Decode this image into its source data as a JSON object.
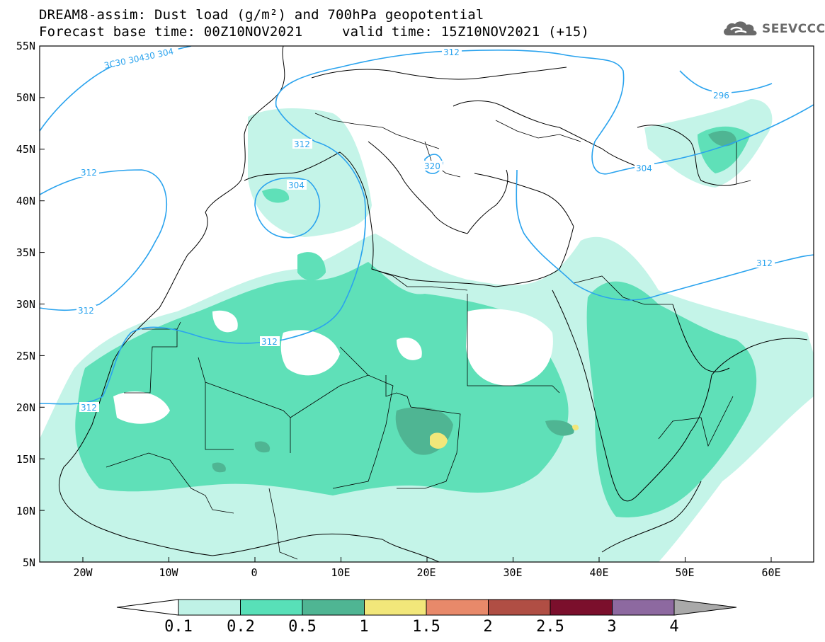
{
  "title": {
    "line1": "DREAM8-assim: Dust load (g/m²) and 700hPa geopotential",
    "line2": "Forecast base time: 00Z10NOV2021",
    "valid_time": "valid time: 15Z10NOV2021 (+15)"
  },
  "logo": {
    "icon": "cloud-icon",
    "text": "SEEVCCC"
  },
  "map": {
    "lat_labels": [
      "55N",
      "50N",
      "45N",
      "40N",
      "35N",
      "30N",
      "25N",
      "20N",
      "15N",
      "10N",
      "5N"
    ],
    "lon_labels": [
      "20W",
      "10W",
      "0",
      "10E",
      "20E",
      "30E",
      "40E",
      "50E",
      "60E"
    ],
    "lat_range": [
      5,
      55
    ],
    "lon_range": [
      -25,
      65
    ],
    "contour_labels": {
      "c1": "312",
      "c2": "312",
      "c3": "312",
      "c4": "312",
      "c5": "312",
      "c6": "312",
      "c7": "312",
      "c8": "304",
      "c9": "304",
      "c10": "304",
      "c11": "320",
      "c12": "296",
      "c13": "3C30 30430 304"
    }
  },
  "colorbar": {
    "ticks": [
      "0.1",
      "0.2",
      "0.5",
      "1",
      "1.5",
      "2",
      "2.5",
      "3",
      "4"
    ],
    "colors": [
      "#ffffff",
      "#bff2e6",
      "#58e0b8",
      "#4fb593",
      "#f2e77a",
      "#e8896a",
      "#b04e44",
      "#7b0f2c",
      "#8d69a0",
      "#a9a9a9"
    ]
  },
  "colors": {
    "dust_01": "#c4f4e8",
    "dust_02": "#5fe0b8",
    "dust_05": "#4fb593",
    "dust_1": "#f2e77a",
    "contour": "#2aa3ee"
  }
}
